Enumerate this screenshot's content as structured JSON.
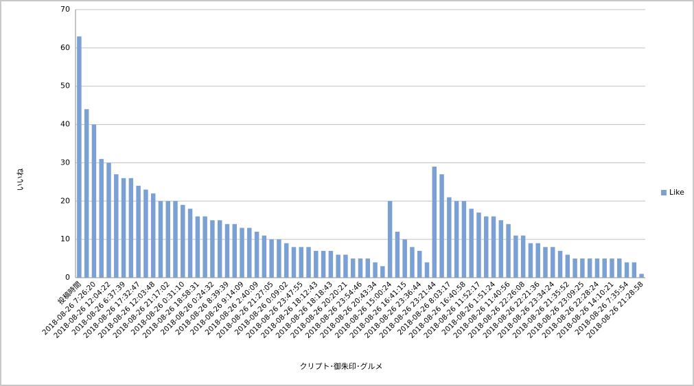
{
  "chart_data": {
    "type": "bar",
    "y_label": "いいね",
    "x_label": "クリプト･御朱印･グルメ",
    "categories": [
      "投稿時間",
      null,
      "2018-08-26 7:26:20",
      null,
      "2018-08-26 12:04:22",
      null,
      "2018-08-26 6:37:39",
      null,
      "2018-08-26 17:32:47",
      null,
      "2018-08-26 12:03:48",
      null,
      "2018-08-26 21:17:02",
      null,
      "2018-08-26 0:31:10",
      null,
      "2018-08-26 18:58:31",
      null,
      "2018-08-26 0:24:32",
      null,
      "2018-08-26 8:39:39",
      null,
      "2018-08-26 9:14:09",
      null,
      "2018-08-26 2:40:09",
      null,
      "2018-08-26 21:27:05",
      null,
      "2018-08-26 0:09:02",
      null,
      "2018-08-26 23:47:55",
      null,
      "2018-08-26 18:12:43",
      null,
      "2018-08-26 18:18:43",
      null,
      "2018-08-26 20:20:21",
      null,
      "2018-08-26 23:54:46",
      null,
      "2018-08-26 20:43:34",
      null,
      "2018-08-26 15:00:24",
      null,
      "2018-08-26 16:41:15",
      null,
      "2018-08-26 23:36:44",
      null,
      "2018-08-26 23:21:44",
      null,
      "2018-08-26 8:03:17",
      null,
      "2018-08-26 16:40:58",
      null,
      "2018-08-26 11:52:17",
      null,
      "2018-08-26 1:51:24",
      null,
      "2018-08-26 11:40:56",
      null,
      "2018-08-26 22:26:08",
      null,
      "2018-08-26 22:21:36",
      null,
      "2018-08-26 23:34:24",
      null,
      "2018-08-26 21:35:52",
      null,
      "2018-08-26 23:09:25",
      null,
      "2018-08-26 22:28:24",
      null,
      "2018-08-26 14:10:21",
      null,
      "2018-08-26 7:35:54",
      null,
      "2018-08-26 21:28:58"
    ],
    "series": [
      {
        "name": "Like",
        "color": "#7ba0d4",
        "values": [
          63,
          44,
          40,
          31,
          30,
          27,
          26,
          26,
          24,
          23,
          22,
          20,
          20,
          20,
          19,
          18,
          16,
          16,
          15,
          15,
          14,
          14,
          13,
          13,
          12,
          11,
          10,
          10,
          9,
          8,
          8,
          8,
          7,
          7,
          7,
          6,
          6,
          5,
          5,
          5,
          4,
          3,
          20,
          12,
          10,
          8,
          7,
          4,
          29,
          27,
          21,
          20,
          20,
          18,
          17,
          16,
          16,
          15,
          14,
          11,
          11,
          9,
          9,
          8,
          8,
          7,
          6,
          5,
          5,
          5,
          5,
          5,
          5,
          5,
          4,
          4,
          1
        ]
      }
    ],
    "ylim": [
      0,
      70
    ],
    "yticks": [
      0,
      10,
      20,
      30,
      40,
      50,
      60,
      70
    ],
    "grid": true,
    "legend": "right"
  }
}
